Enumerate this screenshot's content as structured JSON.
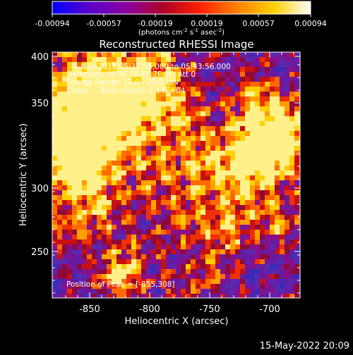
{
  "colorbar": {
    "tick_labels": [
      "-0.00094",
      "-0.00057",
      "-0.00019",
      "0.00019",
      "0.00057",
      "0.00094"
    ],
    "units_main": "(photons cm",
    "units_exp1": "-2",
    "units_mid": " s",
    "units_exp2": "-1",
    "units_tail": " asec",
    "units_exp3": "-2",
    "units_close": ")",
    "colors": [
      "#0000ff",
      "#5a00c8",
      "#8a00a0",
      "#b00028",
      "#ff2000",
      "#ff8000",
      "#ffd000",
      "#ffffff"
    ]
  },
  "plot": {
    "title": "Reconstructed RHESSI Image",
    "x_label": "Heliocentric X (arcsec)",
    "y_label": "Heliocentric Y (arcsec)",
    "x_ticks": [
      "-850",
      "-800",
      "-750",
      "-700"
    ],
    "y_ticks": [
      "400",
      "350",
      "300",
      "250"
    ],
    "info_lines": [
      "4-Nov-2011 05:37:56.000 to 05:43:56.000",
      "Detectors: 3F 4F 5F 6F 7F 8F, Att 0",
      "Energy Range: 12.0 - 25.0 keV",
      "Clean     Total counts: 1.14E+04"
    ],
    "peak_label": "Position of Peak = [-855,308]"
  },
  "timestamp": "15-May-2022 20:09",
  "chart_data": {
    "type": "heatmap",
    "title": "Reconstructed RHESSI Image",
    "xlabel": "Heliocentric X (arcsec)",
    "ylabel": "Heliocentric Y (arcsec)",
    "xlim": [
      -877,
      -688
    ],
    "ylim": [
      208,
      404
    ],
    "colorbar_range": [
      -0.00094,
      0.00094
    ],
    "colorbar_label": "(photons cm-2 s-1 asec-2)",
    "peak_position": [
      -855,
      308
    ]
  }
}
